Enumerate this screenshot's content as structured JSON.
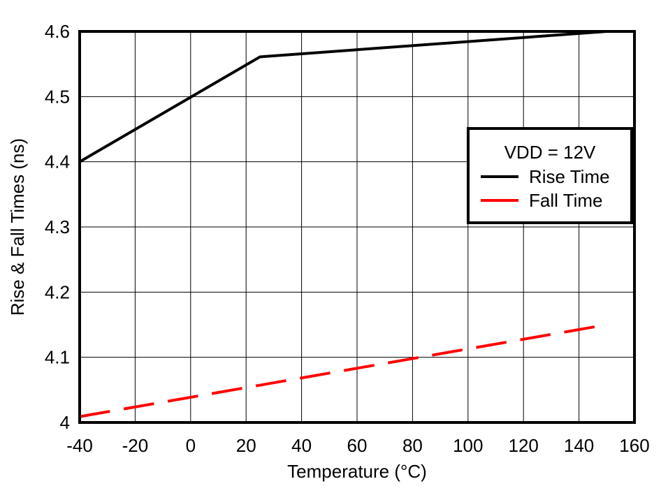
{
  "chart_data": {
    "type": "line",
    "title": "",
    "xlabel": "Temperature (°C)",
    "ylabel": "Rise & Fall Times (ns)",
    "xlim": [
      -40,
      160
    ],
    "ylim": [
      4.0,
      4.6
    ],
    "xticks": [
      -40,
      -20,
      0,
      20,
      40,
      60,
      80,
      100,
      120,
      140,
      160
    ],
    "yticks": [
      4,
      4.1,
      4.2,
      4.3,
      4.4,
      4.5,
      4.6
    ],
    "ytick_labels": [
      "4",
      "4.1",
      "4.2",
      "4.3",
      "4.4",
      "4.5",
      "4.6"
    ],
    "grid": true,
    "legend": {
      "title": "VDD = 12V",
      "position": "right"
    },
    "series": [
      {
        "name": "Rise Time",
        "color": "#000000",
        "style": "solid",
        "x": [
          -40,
          25,
          150
        ],
        "y": [
          4.4,
          4.561,
          4.6
        ]
      },
      {
        "name": "Fall Time",
        "color": "#ff0000",
        "style": "dashed",
        "x": [
          -40,
          150
        ],
        "y": [
          4.009,
          4.15
        ]
      }
    ]
  }
}
